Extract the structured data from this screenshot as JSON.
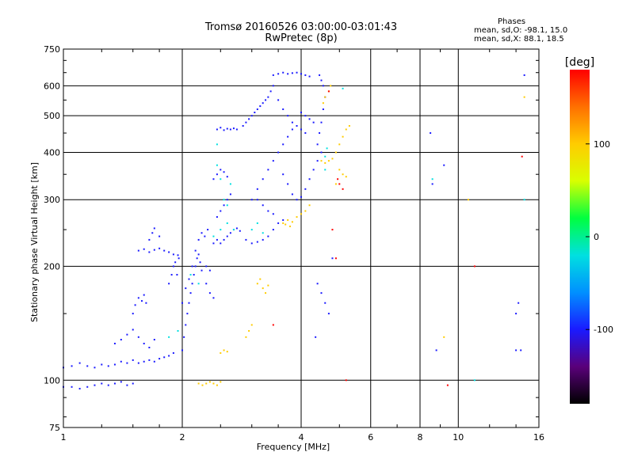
{
  "header": {
    "title_line1": "Tromsø 20160526 03:00:00-03:01:43",
    "title_line2": "RwPretec (8p)"
  },
  "phases": {
    "heading": "Phases",
    "line_o": "mean, sd,O: -98.1, 15.0",
    "line_x": "mean, sd,X:  88.1, 18.5"
  },
  "colorbar": {
    "label": "[deg]",
    "ticks": [
      {
        "value": 100,
        "label": "100"
      },
      {
        "value": 0,
        "label": "0"
      },
      {
        "value": -100,
        "label": "-100"
      }
    ],
    "range": [
      -180,
      180
    ],
    "colors": [
      "#000000",
      "#5a007a",
      "#1a1aff",
      "#0090ff",
      "#00e0e0",
      "#00ff40",
      "#d8ff00",
      "#ffcc00",
      "#ff7000",
      "#ff0000"
    ]
  },
  "chart_data": {
    "type": "scatter",
    "title": "Tromsø 20160526 03:00:00-03:01:43",
    "subtitle": "RwPretec (8p)",
    "xlabel": "Frequency [MHz]",
    "ylabel": "Stationary phase Virtual Height [km]",
    "x_scale": "log",
    "y_scale": "log",
    "xlim": [
      1,
      16
    ],
    "ylim": [
      75,
      750
    ],
    "x_ticks": [
      {
        "value": 1,
        "label": "1"
      },
      {
        "value": 2,
        "label": "2"
      },
      {
        "value": 4,
        "label": "4"
      },
      {
        "value": 6,
        "label": "6"
      },
      {
        "value": 8,
        "label": "8"
      },
      {
        "value": 10,
        "label": "10"
      },
      {
        "value": 16,
        "label": "16"
      }
    ],
    "y_ticks": [
      {
        "value": 75,
        "label": "75"
      },
      {
        "value": 100,
        "label": "100"
      },
      {
        "value": 200,
        "label": "200"
      },
      {
        "value": 300,
        "label": "300"
      },
      {
        "value": 400,
        "label": "400"
      },
      {
        "value": 500,
        "label": "500"
      },
      {
        "value": 600,
        "label": "600"
      },
      {
        "value": 750,
        "label": "750"
      }
    ],
    "x_gridlines": [
      1,
      2,
      4,
      6,
      8,
      10,
      16
    ],
    "y_gridlines": [
      100,
      200,
      300,
      400,
      500,
      600
    ],
    "grid": true,
    "series": [
      {
        "phase": -100,
        "points": [
          [
            1.0,
            96
          ],
          [
            1.05,
            96
          ],
          [
            1.1,
            95
          ],
          [
            1.15,
            96
          ],
          [
            1.2,
            97
          ],
          [
            1.25,
            98
          ],
          [
            1.3,
            97
          ],
          [
            1.35,
            98
          ],
          [
            1.4,
            99
          ],
          [
            1.45,
            97
          ],
          [
            1.5,
            98
          ],
          [
            1.0,
            108
          ],
          [
            1.05,
            109
          ],
          [
            1.1,
            111
          ],
          [
            1.15,
            109
          ],
          [
            1.2,
            108
          ],
          [
            1.25,
            110
          ],
          [
            1.3,
            109
          ],
          [
            1.35,
            110
          ],
          [
            1.4,
            112
          ],
          [
            1.45,
            111
          ],
          [
            1.5,
            113
          ],
          [
            1.55,
            111
          ],
          [
            1.6,
            112
          ],
          [
            1.65,
            113
          ],
          [
            1.7,
            112
          ],
          [
            1.75,
            114
          ],
          [
            1.8,
            115
          ],
          [
            1.85,
            116
          ],
          [
            1.9,
            118
          ],
          [
            1.35,
            125
          ],
          [
            1.4,
            128
          ],
          [
            1.45,
            132
          ],
          [
            1.5,
            136
          ],
          [
            1.55,
            130
          ],
          [
            1.6,
            125
          ],
          [
            1.65,
            122
          ],
          [
            1.7,
            128
          ],
          [
            1.5,
            150
          ],
          [
            1.52,
            158
          ],
          [
            1.55,
            165
          ],
          [
            1.58,
            162
          ],
          [
            1.6,
            168
          ],
          [
            1.62,
            160
          ],
          [
            1.55,
            220
          ],
          [
            1.6,
            222
          ],
          [
            1.65,
            218
          ],
          [
            1.7,
            221
          ],
          [
            1.75,
            223
          ],
          [
            1.8,
            220
          ],
          [
            1.85,
            218
          ],
          [
            1.9,
            215
          ],
          [
            1.95,
            214
          ],
          [
            1.65,
            235
          ],
          [
            1.68,
            245
          ],
          [
            1.7,
            252
          ],
          [
            1.75,
            240
          ],
          [
            1.85,
            180
          ],
          [
            1.88,
            190
          ],
          [
            1.9,
            200
          ],
          [
            1.92,
            205
          ],
          [
            1.94,
            190
          ],
          [
            1.96,
            210
          ],
          [
            2.0,
            120
          ],
          [
            2.02,
            130
          ],
          [
            2.04,
            140
          ],
          [
            2.06,
            150
          ],
          [
            2.08,
            160
          ],
          [
            2.1,
            170
          ],
          [
            2.12,
            180
          ],
          [
            2.14,
            190
          ],
          [
            2.16,
            200
          ],
          [
            2.18,
            210
          ],
          [
            2.2,
            215
          ],
          [
            2.22,
            205
          ],
          [
            2.24,
            195
          ],
          [
            2.0,
            160
          ],
          [
            2.04,
            175
          ],
          [
            2.08,
            185
          ],
          [
            2.12,
            200
          ],
          [
            2.16,
            220
          ],
          [
            2.2,
            235
          ],
          [
            2.24,
            245
          ],
          [
            2.28,
            240
          ],
          [
            2.32,
            250
          ],
          [
            2.3,
            180
          ],
          [
            2.35,
            170
          ],
          [
            2.4,
            165
          ],
          [
            2.3,
            200
          ],
          [
            2.35,
            195
          ],
          [
            2.4,
            230
          ],
          [
            2.45,
            235
          ],
          [
            2.5,
            230
          ],
          [
            2.55,
            235
          ],
          [
            2.6,
            240
          ],
          [
            2.65,
            245
          ],
          [
            2.7,
            250
          ],
          [
            2.75,
            252
          ],
          [
            2.8,
            248
          ],
          [
            2.45,
            270
          ],
          [
            2.5,
            280
          ],
          [
            2.55,
            290
          ],
          [
            2.6,
            300
          ],
          [
            2.65,
            310
          ],
          [
            2.4,
            340
          ],
          [
            2.45,
            350
          ],
          [
            2.5,
            360
          ],
          [
            2.55,
            355
          ],
          [
            2.6,
            345
          ],
          [
            2.45,
            460
          ],
          [
            2.5,
            465
          ],
          [
            2.55,
            458
          ],
          [
            2.6,
            462
          ],
          [
            2.65,
            460
          ],
          [
            2.7,
            463
          ],
          [
            2.75,
            460
          ],
          [
            2.85,
            470
          ],
          [
            2.9,
            480
          ],
          [
            2.95,
            490
          ],
          [
            3.0,
            500
          ],
          [
            3.05,
            510
          ],
          [
            3.1,
            520
          ],
          [
            3.15,
            530
          ],
          [
            3.2,
            540
          ],
          [
            3.25,
            550
          ],
          [
            3.3,
            560
          ],
          [
            3.35,
            580
          ],
          [
            3.4,
            600
          ],
          [
            2.9,
            235
          ],
          [
            3.0,
            230
          ],
          [
            3.1,
            232
          ],
          [
            3.2,
            235
          ],
          [
            3.3,
            240
          ],
          [
            3.4,
            250
          ],
          [
            3.5,
            260
          ],
          [
            3.6,
            265
          ],
          [
            3.0,
            300
          ],
          [
            3.1,
            320
          ],
          [
            3.2,
            340
          ],
          [
            3.3,
            360
          ],
          [
            3.4,
            380
          ],
          [
            3.5,
            400
          ],
          [
            3.6,
            420
          ],
          [
            3.7,
            440
          ],
          [
            3.8,
            460
          ],
          [
            3.1,
            300
          ],
          [
            3.2,
            290
          ],
          [
            3.3,
            280
          ],
          [
            3.4,
            275
          ],
          [
            3.4,
            640
          ],
          [
            3.5,
            645
          ],
          [
            3.6,
            650
          ],
          [
            3.7,
            645
          ],
          [
            3.8,
            648
          ],
          [
            3.9,
            650
          ],
          [
            4.0,
            645
          ],
          [
            4.1,
            640
          ],
          [
            4.2,
            635
          ],
          [
            3.5,
            550
          ],
          [
            3.6,
            520
          ],
          [
            3.7,
            500
          ],
          [
            3.8,
            480
          ],
          [
            3.9,
            470
          ],
          [
            4.0,
            460
          ],
          [
            4.1,
            450
          ],
          [
            3.6,
            350
          ],
          [
            3.7,
            330
          ],
          [
            3.8,
            310
          ],
          [
            3.9,
            300
          ],
          [
            4.0,
            305
          ],
          [
            4.1,
            320
          ],
          [
            4.2,
            340
          ],
          [
            4.3,
            360
          ],
          [
            4.4,
            380
          ],
          [
            4.5,
            400
          ],
          [
            4.4,
            420
          ],
          [
            4.45,
            450
          ],
          [
            4.5,
            480
          ],
          [
            4.55,
            520
          ],
          [
            4.6,
            560
          ],
          [
            4.55,
            600
          ],
          [
            4.5,
            620
          ],
          [
            4.45,
            640
          ],
          [
            4.0,
            510
          ],
          [
            4.1,
            500
          ],
          [
            4.2,
            490
          ],
          [
            4.3,
            480
          ],
          [
            4.8,
            210
          ],
          [
            4.7,
            150
          ],
          [
            4.35,
            130
          ],
          [
            4.4,
            180
          ],
          [
            4.5,
            170
          ],
          [
            4.6,
            160
          ],
          [
            8.5,
            450
          ],
          [
            8.6,
            330
          ],
          [
            8.8,
            120
          ],
          [
            9.2,
            370
          ],
          [
            14.0,
            150
          ],
          [
            14.2,
            160
          ],
          [
            14.0,
            120
          ],
          [
            14.4,
            120
          ],
          [
            14.7,
            640
          ]
        ]
      },
      {
        "phase": -40,
        "points": [
          [
            2.45,
            370
          ],
          [
            2.5,
            340
          ],
          [
            2.55,
            300
          ],
          [
            2.6,
            290
          ],
          [
            2.65,
            330
          ],
          [
            2.45,
            420
          ],
          [
            2.4,
            240
          ],
          [
            2.5,
            250
          ],
          [
            2.6,
            260
          ],
          [
            2.7,
            250
          ],
          [
            3.0,
            250
          ],
          [
            3.1,
            260
          ],
          [
            3.2,
            245
          ],
          [
            2.1,
            190
          ],
          [
            2.2,
            180
          ],
          [
            1.85,
            130
          ],
          [
            1.95,
            135
          ],
          [
            4.6,
            390
          ],
          [
            4.65,
            410
          ],
          [
            4.6,
            360
          ],
          [
            5.1,
            590
          ],
          [
            8.6,
            340
          ],
          [
            11.0,
            100
          ],
          [
            14.7,
            300
          ]
        ]
      },
      {
        "phase": 100,
        "points": [
          [
            2.2,
            98
          ],
          [
            2.25,
            97
          ],
          [
            2.3,
            98
          ],
          [
            2.35,
            99
          ],
          [
            2.4,
            98
          ],
          [
            2.45,
            97
          ],
          [
            2.5,
            99
          ],
          [
            2.5,
            118
          ],
          [
            2.55,
            120
          ],
          [
            2.6,
            119
          ],
          [
            3.1,
            180
          ],
          [
            3.15,
            185
          ],
          [
            3.2,
            175
          ],
          [
            3.25,
            170
          ],
          [
            3.3,
            178
          ],
          [
            2.9,
            130
          ],
          [
            2.95,
            135
          ],
          [
            3.0,
            140
          ],
          [
            3.6,
            260
          ],
          [
            3.7,
            265
          ],
          [
            3.8,
            262
          ],
          [
            3.9,
            270
          ],
          [
            4.0,
            275
          ],
          [
            4.1,
            280
          ],
          [
            4.2,
            290
          ],
          [
            3.65,
            258
          ],
          [
            3.75,
            255
          ],
          [
            4.5,
            380
          ],
          [
            4.6,
            375
          ],
          [
            4.7,
            380
          ],
          [
            4.8,
            385
          ],
          [
            4.9,
            400
          ],
          [
            5.0,
            420
          ],
          [
            5.1,
            440
          ],
          [
            5.2,
            460
          ],
          [
            5.3,
            470
          ],
          [
            4.6,
            560
          ],
          [
            4.7,
            580
          ],
          [
            4.75,
            600
          ],
          [
            4.55,
            540
          ],
          [
            5.0,
            360
          ],
          [
            5.1,
            350
          ],
          [
            5.2,
            345
          ],
          [
            4.9,
            330
          ],
          [
            9.2,
            130
          ],
          [
            14.7,
            560
          ],
          [
            10.6,
            300
          ]
        ]
      },
      {
        "phase": 160,
        "points": [
          [
            4.7,
            580
          ],
          [
            5.0,
            330
          ],
          [
            5.1,
            320
          ],
          [
            4.9,
            210
          ],
          [
            4.8,
            250
          ],
          [
            3.4,
            140
          ],
          [
            5.2,
            100
          ],
          [
            14.5,
            390
          ],
          [
            11.0,
            200
          ],
          [
            9.4,
            97
          ],
          [
            4.95,
            340
          ]
        ]
      }
    ]
  }
}
